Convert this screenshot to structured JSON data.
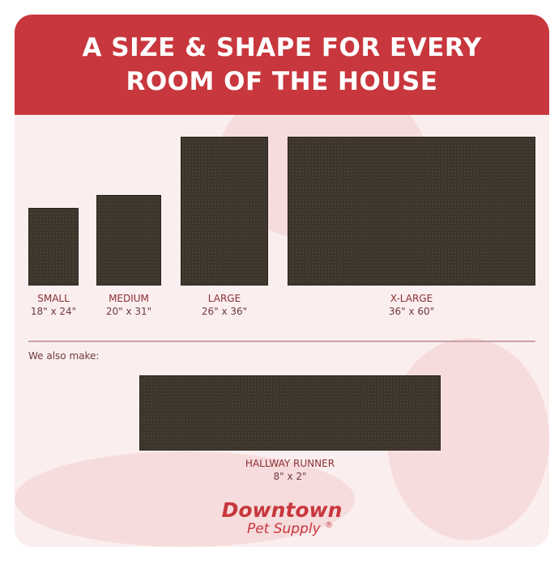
{
  "header": {
    "line1": "A SIZE & SHAPE FOR EVERY",
    "line2": "ROOM OF THE HOUSE"
  },
  "sizes": [
    {
      "name": "SMALL",
      "dims": "18\" x 24\""
    },
    {
      "name": "MEDIUM",
      "dims": "20\" x 31\""
    },
    {
      "name": "LARGE",
      "dims": "26\" x 36\""
    },
    {
      "name": "X-LARGE",
      "dims": "36\" x 60\""
    }
  ],
  "also_label": "We also make:",
  "runner": {
    "name": "HALLWAY RUNNER",
    "dims": "8\" x 2\""
  },
  "brand": {
    "name": "Downtown",
    "sub": "Pet Supply",
    "mark": "®"
  },
  "colors": {
    "accent": "#c8373d",
    "mat": "#3d352c",
    "background": "#fbeeee"
  }
}
